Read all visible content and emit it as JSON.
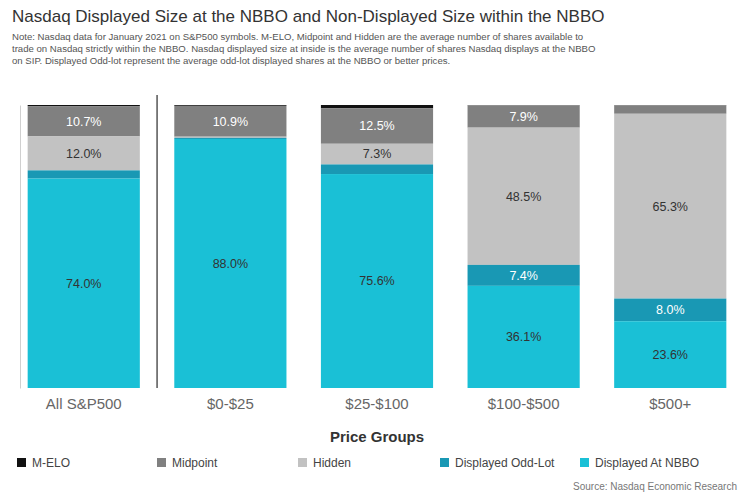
{
  "chart_data": {
    "type": "bar",
    "stacked": true,
    "data_labels": true,
    "legend": "bottom",
    "tick_labels": "x",
    "title": "Nasdaq Displayed Size at the NBBO and Non-Displayed Size within the NBBO",
    "subtitle": [
      "Note: Nasdaq data for January 2021 on S&P500 symbols. M-ELO, Midpoint and Hidden are the average number of shares available to",
      "trade on Nasdaq strictly within the NBBO. Nasdaq displayed size at inside is the average number of shares Nasdaq displays at the NBBO",
      "on SIP. Displayed Odd-lot represent the average odd-lot displayed shares at the NBBO or better prices."
    ],
    "x_label": "Price Groups",
    "annotations": [
      "Source: Nasdaq Economic Research"
    ],
    "categories": [
      "All S&P500",
      "$0-$25",
      "$25-$100",
      "$100-$500",
      "$500+"
    ],
    "ylim": [
      0,
      100
    ],
    "series": [
      {
        "name": "M-ELO",
        "color": "#111111",
        "values": [
          0.4,
          0.3,
          1.2,
          0.1,
          0.1
        ],
        "value_labels": [
          null,
          null,
          null,
          null,
          null
        ]
      },
      {
        "name": "Midpoint",
        "color": "#808080",
        "values": [
          10.7,
          10.9,
          12.5,
          7.9,
          3.0
        ],
        "value_labels": [
          "10.7%",
          "10.9%",
          "12.5%",
          "7.9%",
          null
        ]
      },
      {
        "name": "Hidden",
        "color": "#c2c2c2",
        "values": [
          12.0,
          0.4,
          7.3,
          48.5,
          65.3
        ],
        "value_labels": [
          "12.0%",
          null,
          "7.3%",
          "48.5%",
          "65.3%"
        ]
      },
      {
        "name": "Displayed Odd-Lot",
        "color": "#1998b4",
        "values": [
          2.9,
          0.4,
          3.4,
          7.4,
          8.0
        ],
        "value_labels": [
          null,
          null,
          null,
          "7.4%",
          "8.0%"
        ]
      },
      {
        "name": "Displayed At NBBO",
        "color": "#1ac0d6",
        "values": [
          74.0,
          88.0,
          75.6,
          36.1,
          23.6
        ],
        "value_labels": [
          "74.0%",
          "88.0%",
          "75.6%",
          "36.1%",
          "23.6%"
        ]
      }
    ]
  }
}
